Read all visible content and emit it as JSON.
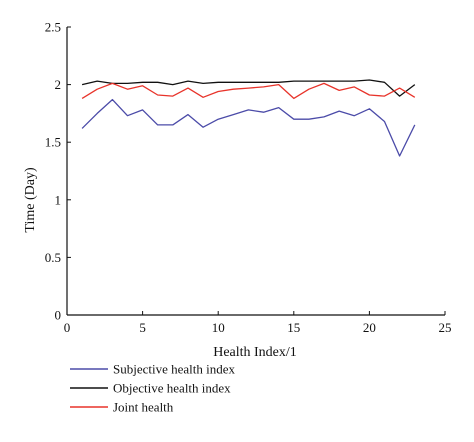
{
  "chart_data": {
    "type": "line",
    "title": "",
    "xlabel": "Health Index/1",
    "ylabel": "Time (Day)",
    "xlim": [
      0,
      25
    ],
    "ylim": [
      0,
      2.5
    ],
    "x_ticks": [
      0,
      5,
      10,
      15,
      20,
      25
    ],
    "x_tick_labels": [
      "0",
      "5",
      "10",
      "15",
      "20",
      "25"
    ],
    "y_ticks": [
      0,
      0.5,
      1,
      1.5,
      2,
      2.5
    ],
    "y_tick_labels": [
      "0",
      "0.5",
      "1",
      "1.5",
      "2",
      "2.5"
    ],
    "grid": false,
    "legend_position": "bottom",
    "x": [
      1,
      2,
      3,
      4,
      5,
      6,
      7,
      8,
      9,
      10,
      11,
      12,
      13,
      14,
      15,
      16,
      17,
      18,
      19,
      20,
      21,
      22,
      23
    ],
    "series": [
      {
        "name": "Subjective health index",
        "color": "#4b4ba8",
        "values": [
          1.62,
          1.75,
          1.87,
          1.73,
          1.78,
          1.65,
          1.65,
          1.74,
          1.63,
          1.7,
          1.74,
          1.78,
          1.76,
          1.8,
          1.7,
          1.7,
          1.72,
          1.77,
          1.73,
          1.79,
          1.68,
          1.38,
          1.65
        ]
      },
      {
        "name": "Objective health index",
        "color": "#111111",
        "values": [
          2.0,
          2.03,
          2.01,
          2.01,
          2.02,
          2.02,
          2.0,
          2.03,
          2.01,
          2.02,
          2.02,
          2.02,
          2.02,
          2.02,
          2.03,
          2.03,
          2.03,
          2.03,
          2.03,
          2.04,
          2.02,
          1.9,
          2.0
        ]
      },
      {
        "name": "Joint health",
        "color": "#e8332a",
        "values": [
          1.88,
          1.96,
          2.01,
          1.96,
          1.99,
          1.91,
          1.9,
          1.97,
          1.89,
          1.94,
          1.96,
          1.97,
          1.98,
          2.0,
          1.88,
          1.96,
          2.01,
          1.95,
          1.98,
          1.91,
          1.9,
          1.97,
          1.89
        ]
      }
    ]
  }
}
